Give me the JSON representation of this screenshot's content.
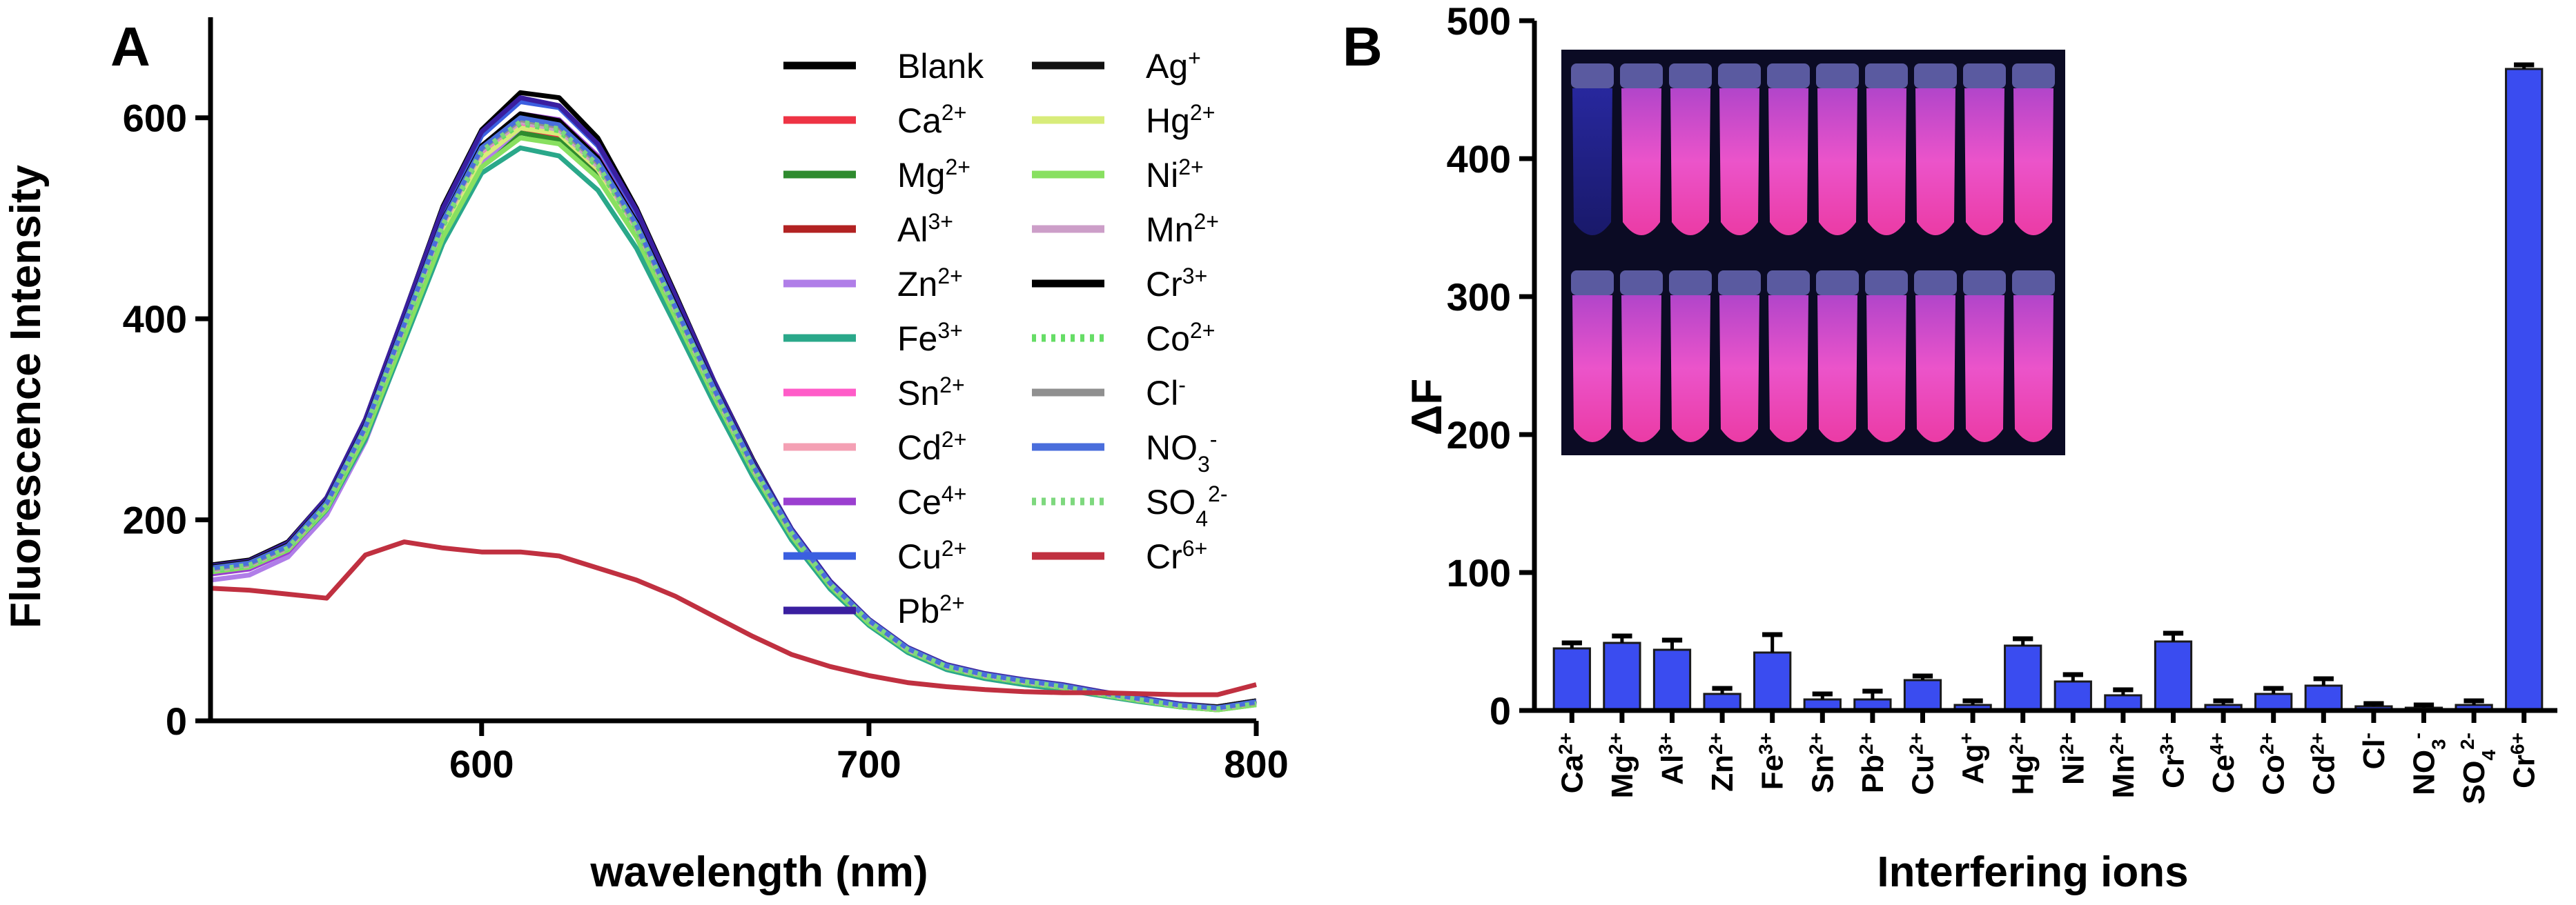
{
  "chart_data": [
    {
      "panel": "A",
      "type": "line",
      "xlabel": "wavelength (nm)",
      "ylabel": "Fluorescence Intensity",
      "xlim": [
        530,
        800
      ],
      "ylim": [
        0,
        700
      ],
      "xticks": [
        600,
        700,
        800
      ],
      "yticks": [
        0,
        200,
        400,
        600
      ],
      "x": [
        530,
        540,
        550,
        560,
        570,
        580,
        590,
        600,
        610,
        620,
        630,
        640,
        650,
        660,
        670,
        680,
        690,
        700,
        710,
        720,
        730,
        740,
        750,
        760,
        770,
        780,
        790,
        800
      ],
      "series": [
        {
          "name": "Blank",
          "sup": "",
          "sub": "",
          "color": "#000000",
          "dash": "",
          "values": [
            155,
            160,
            178,
            222,
            300,
            405,
            512,
            588,
            625,
            620,
            580,
            510,
            425,
            338,
            260,
            190,
            138,
            100,
            72,
            55,
            46,
            40,
            35,
            28,
            22,
            16,
            14,
            20
          ]
        },
        {
          "name": "Ca",
          "sup": "2+",
          "sub": "",
          "color": "#ee3344",
          "dash": "",
          "values": [
            150,
            155,
            172,
            216,
            292,
            395,
            496,
            565,
            590,
            582,
            546,
            485,
            405,
            325,
            250,
            185,
            135,
            98,
            70,
            53,
            44,
            38,
            33,
            27,
            21,
            15,
            12,
            18
          ]
        },
        {
          "name": "Mg",
          "sup": "2+",
          "sub": "",
          "color": "#2e8b2e",
          "dash": "",
          "values": [
            148,
            153,
            170,
            212,
            285,
            385,
            485,
            556,
            585,
            578,
            542,
            482,
            402,
            322,
            248,
            183,
            133,
            97,
            69,
            52,
            43,
            37,
            32,
            26,
            20,
            14,
            11,
            17
          ]
        },
        {
          "name": "Al",
          "sup": "3+",
          "sub": "",
          "color": "#b22222",
          "dash": "",
          "values": [
            152,
            157,
            174,
            218,
            295,
            398,
            500,
            570,
            598,
            590,
            553,
            491,
            410,
            329,
            253,
            187,
            136,
            99,
            71,
            54,
            45,
            39,
            34,
            27,
            21,
            15,
            13,
            19
          ]
        },
        {
          "name": "Zn",
          "sup": "2+",
          "sub": "",
          "color": "#b07ee8",
          "dash": "",
          "values": [
            140,
            145,
            163,
            205,
            278,
            378,
            480,
            555,
            590,
            586,
            552,
            490,
            410,
            330,
            255,
            189,
            138,
            100,
            72,
            55,
            46,
            40,
            35,
            28,
            22,
            16,
            13,
            18
          ]
        },
        {
          "name": "Fe",
          "sup": "3+",
          "sub": "",
          "color": "#2aa88a",
          "dash": "",
          "values": [
            147,
            152,
            169,
            210,
            280,
            377,
            475,
            545,
            570,
            562,
            528,
            470,
            394,
            316,
            243,
            180,
            131,
            95,
            68,
            51,
            42,
            36,
            31,
            25,
            19,
            14,
            11,
            16
          ]
        },
        {
          "name": "Sn",
          "sup": "2+",
          "sub": "",
          "color": "#ff5cc8",
          "dash": "",
          "values": [
            150,
            155,
            172,
            214,
            290,
            390,
            492,
            564,
            592,
            585,
            549,
            487,
            407,
            327,
            251,
            186,
            135,
            98,
            70,
            53,
            44,
            38,
            33,
            26,
            20,
            15,
            12,
            17
          ]
        },
        {
          "name": "Cd",
          "sup": "2+",
          "sub": "",
          "color": "#f4a0b4",
          "dash": "",
          "values": [
            151,
            156,
            173,
            216,
            292,
            393,
            495,
            568,
            596,
            588,
            552,
            490,
            409,
            328,
            252,
            187,
            136,
            99,
            71,
            54,
            45,
            39,
            34,
            27,
            21,
            15,
            12,
            18
          ]
        },
        {
          "name": "Ce",
          "sup": "4+",
          "sub": "",
          "color": "#9b3fd0",
          "dash": "",
          "values": [
            146,
            151,
            168,
            212,
            290,
            393,
            497,
            572,
            604,
            598,
            562,
            499,
            416,
            334,
            257,
            190,
            138,
            100,
            72,
            55,
            46,
            40,
            35,
            28,
            22,
            16,
            13,
            18
          ]
        },
        {
          "name": "Cu",
          "sup": "2+",
          "sub": "",
          "color": "#3b5fe0",
          "dash": "",
          "values": [
            153,
            158,
            176,
            220,
            298,
            402,
            506,
            582,
            616,
            610,
            572,
            506,
            421,
            336,
            258,
            190,
            138,
            100,
            72,
            55,
            46,
            40,
            35,
            28,
            22,
            16,
            13,
            19
          ]
        },
        {
          "name": "Pb",
          "sup": "2+",
          "sub": "",
          "color": "#3a1fa0",
          "dash": "",
          "values": [
            154,
            159,
            177,
            222,
            300,
            405,
            510,
            586,
            620,
            612,
            574,
            508,
            423,
            338,
            259,
            191,
            139,
            101,
            73,
            56,
            47,
            41,
            36,
            29,
            23,
            17,
            14,
            20
          ]
        },
        {
          "name": "Ag",
          "sup": "+",
          "sub": "",
          "color": "#111111",
          "dash": "",
          "values": [
            153,
            158,
            175,
            218,
            294,
            396,
            498,
            570,
            600,
            594,
            558,
            496,
            414,
            332,
            256,
            189,
            137,
            100,
            72,
            55,
            46,
            40,
            35,
            28,
            22,
            16,
            14,
            20
          ]
        },
        {
          "name": "Hg",
          "sup": "2+",
          "sub": "",
          "color": "#d8ec7a",
          "dash": "",
          "values": [
            149,
            154,
            171,
            213,
            287,
            387,
            488,
            560,
            590,
            584,
            549,
            488,
            408,
            328,
            252,
            187,
            136,
            99,
            71,
            54,
            45,
            39,
            34,
            27,
            21,
            15,
            12,
            17
          ]
        },
        {
          "name": "Ni",
          "sup": "2+",
          "sub": "",
          "color": "#88e060",
          "dash": "",
          "values": [
            148,
            153,
            170,
            211,
            284,
            382,
            481,
            551,
            580,
            574,
            540,
            481,
            402,
            323,
            249,
            184,
            134,
            97,
            70,
            53,
            44,
            38,
            33,
            26,
            20,
            14,
            11,
            16
          ]
        },
        {
          "name": "Mn",
          "sup": "2+",
          "sub": "",
          "color": "#cc9ec8",
          "dash": "",
          "values": [
            150,
            155,
            172,
            215,
            291,
            392,
            494,
            567,
            596,
            588,
            552,
            490,
            409,
            328,
            252,
            187,
            136,
            99,
            71,
            54,
            45,
            39,
            34,
            27,
            21,
            15,
            12,
            18
          ]
        },
        {
          "name": "Cr",
          "sup": "3+",
          "sub": "",
          "color": "#000000",
          "dash": "",
          "values": [
            152,
            157,
            174,
            217,
            294,
            396,
            498,
            572,
            604,
            597,
            560,
            496,
            413,
            331,
            255,
            188,
            137,
            100,
            72,
            55,
            46,
            40,
            35,
            28,
            22,
            16,
            13,
            19
          ]
        },
        {
          "name": "Co",
          "sup": "2+",
          "sub": "",
          "color": "#66dd66",
          "dash": "6 8",
          "values": [
            149,
            154,
            171,
            213,
            289,
            390,
            492,
            565,
            594,
            587,
            551,
            489,
            408,
            327,
            251,
            186,
            135,
            98,
            70,
            53,
            44,
            38,
            33,
            26,
            20,
            14,
            12,
            17
          ]
        },
        {
          "name": "Cl",
          "sup": "-",
          "sub": "",
          "color": "#909090",
          "dash": "",
          "values": [
            151,
            156,
            173,
            216,
            292,
            394,
            496,
            569,
            598,
            591,
            555,
            492,
            411,
            330,
            254,
            188,
            137,
            100,
            72,
            55,
            46,
            40,
            35,
            28,
            22,
            16,
            13,
            18
          ]
        },
        {
          "name": "NO",
          "sup": "-",
          "sub": "3",
          "color": "#4a6edc",
          "dash": "",
          "values": [
            152,
            157,
            174,
            217,
            293,
            395,
            497,
            570,
            600,
            593,
            557,
            494,
            412,
            331,
            255,
            189,
            137,
            100,
            72,
            55,
            46,
            40,
            35,
            28,
            22,
            16,
            13,
            19
          ]
        },
        {
          "name": "SO",
          "sup": "2-",
          "sub": "4",
          "color": "#7ed87e",
          "dash": "6 8",
          "values": [
            150,
            155,
            172,
            215,
            291,
            392,
            494,
            567,
            596,
            589,
            553,
            491,
            410,
            329,
            253,
            187,
            136,
            99,
            71,
            54,
            45,
            39,
            34,
            27,
            21,
            15,
            12,
            17
          ]
        },
        {
          "name": "Cr",
          "sup": "6+",
          "sub": "",
          "color": "#c03040",
          "dash": "",
          "values": [
            132,
            130,
            126,
            122,
            165,
            178,
            172,
            168,
            168,
            164,
            152,
            140,
            124,
            104,
            84,
            66,
            54,
            45,
            38,
            34,
            31,
            29,
            28,
            28,
            27,
            26,
            26,
            36
          ]
        }
      ]
    },
    {
      "panel": "B",
      "type": "bar",
      "xlabel": "Interfering ions",
      "ylabel": "ΔF",
      "ylim": [
        0,
        500
      ],
      "yticks": [
        0,
        100,
        200,
        300,
        400,
        500
      ],
      "bar_color": "#3a4cf0",
      "categories": [
        {
          "name": "Ca",
          "sup": "2+",
          "sub": ""
        },
        {
          "name": "Mg",
          "sup": "2+",
          "sub": ""
        },
        {
          "name": "Al",
          "sup": "3+",
          "sub": ""
        },
        {
          "name": "Zn",
          "sup": "2+",
          "sub": ""
        },
        {
          "name": "Fe",
          "sup": "3+",
          "sub": ""
        },
        {
          "name": "Sn",
          "sup": "2+",
          "sub": ""
        },
        {
          "name": "Pb",
          "sup": "2+",
          "sub": ""
        },
        {
          "name": "Cu",
          "sup": "2+",
          "sub": ""
        },
        {
          "name": "Ag",
          "sup": "+",
          "sub": ""
        },
        {
          "name": "Hg",
          "sup": "2+",
          "sub": ""
        },
        {
          "name": "Ni",
          "sup": "2+",
          "sub": ""
        },
        {
          "name": "Mn",
          "sup": "2+",
          "sub": ""
        },
        {
          "name": "Cr",
          "sup": "3+",
          "sub": ""
        },
        {
          "name": "Ce",
          "sup": "4+",
          "sub": ""
        },
        {
          "name": "Co",
          "sup": "2+",
          "sub": ""
        },
        {
          "name": "Cd",
          "sup": "2+",
          "sub": ""
        },
        {
          "name": "Cl",
          "sup": "-",
          "sub": ""
        },
        {
          "name": "NO",
          "sup": "-",
          "sub": "3"
        },
        {
          "name": "SO",
          "sup": "2-",
          "sub": "4"
        },
        {
          "name": "Cr",
          "sup": "6+",
          "sub": ""
        }
      ],
      "values": [
        45,
        49,
        44,
        12,
        42,
        8,
        8,
        22,
        4,
        47,
        21,
        11,
        50,
        4,
        12,
        18,
        3,
        2,
        4,
        465
      ],
      "errors": [
        4,
        5,
        7,
        4,
        13,
        4,
        6,
        3,
        3,
        5,
        5,
        4,
        6,
        3,
        4,
        5,
        2,
        2,
        3,
        3
      ],
      "inset": "photograph of two rows of ten sample vials glowing pink under UV light"
    }
  ]
}
